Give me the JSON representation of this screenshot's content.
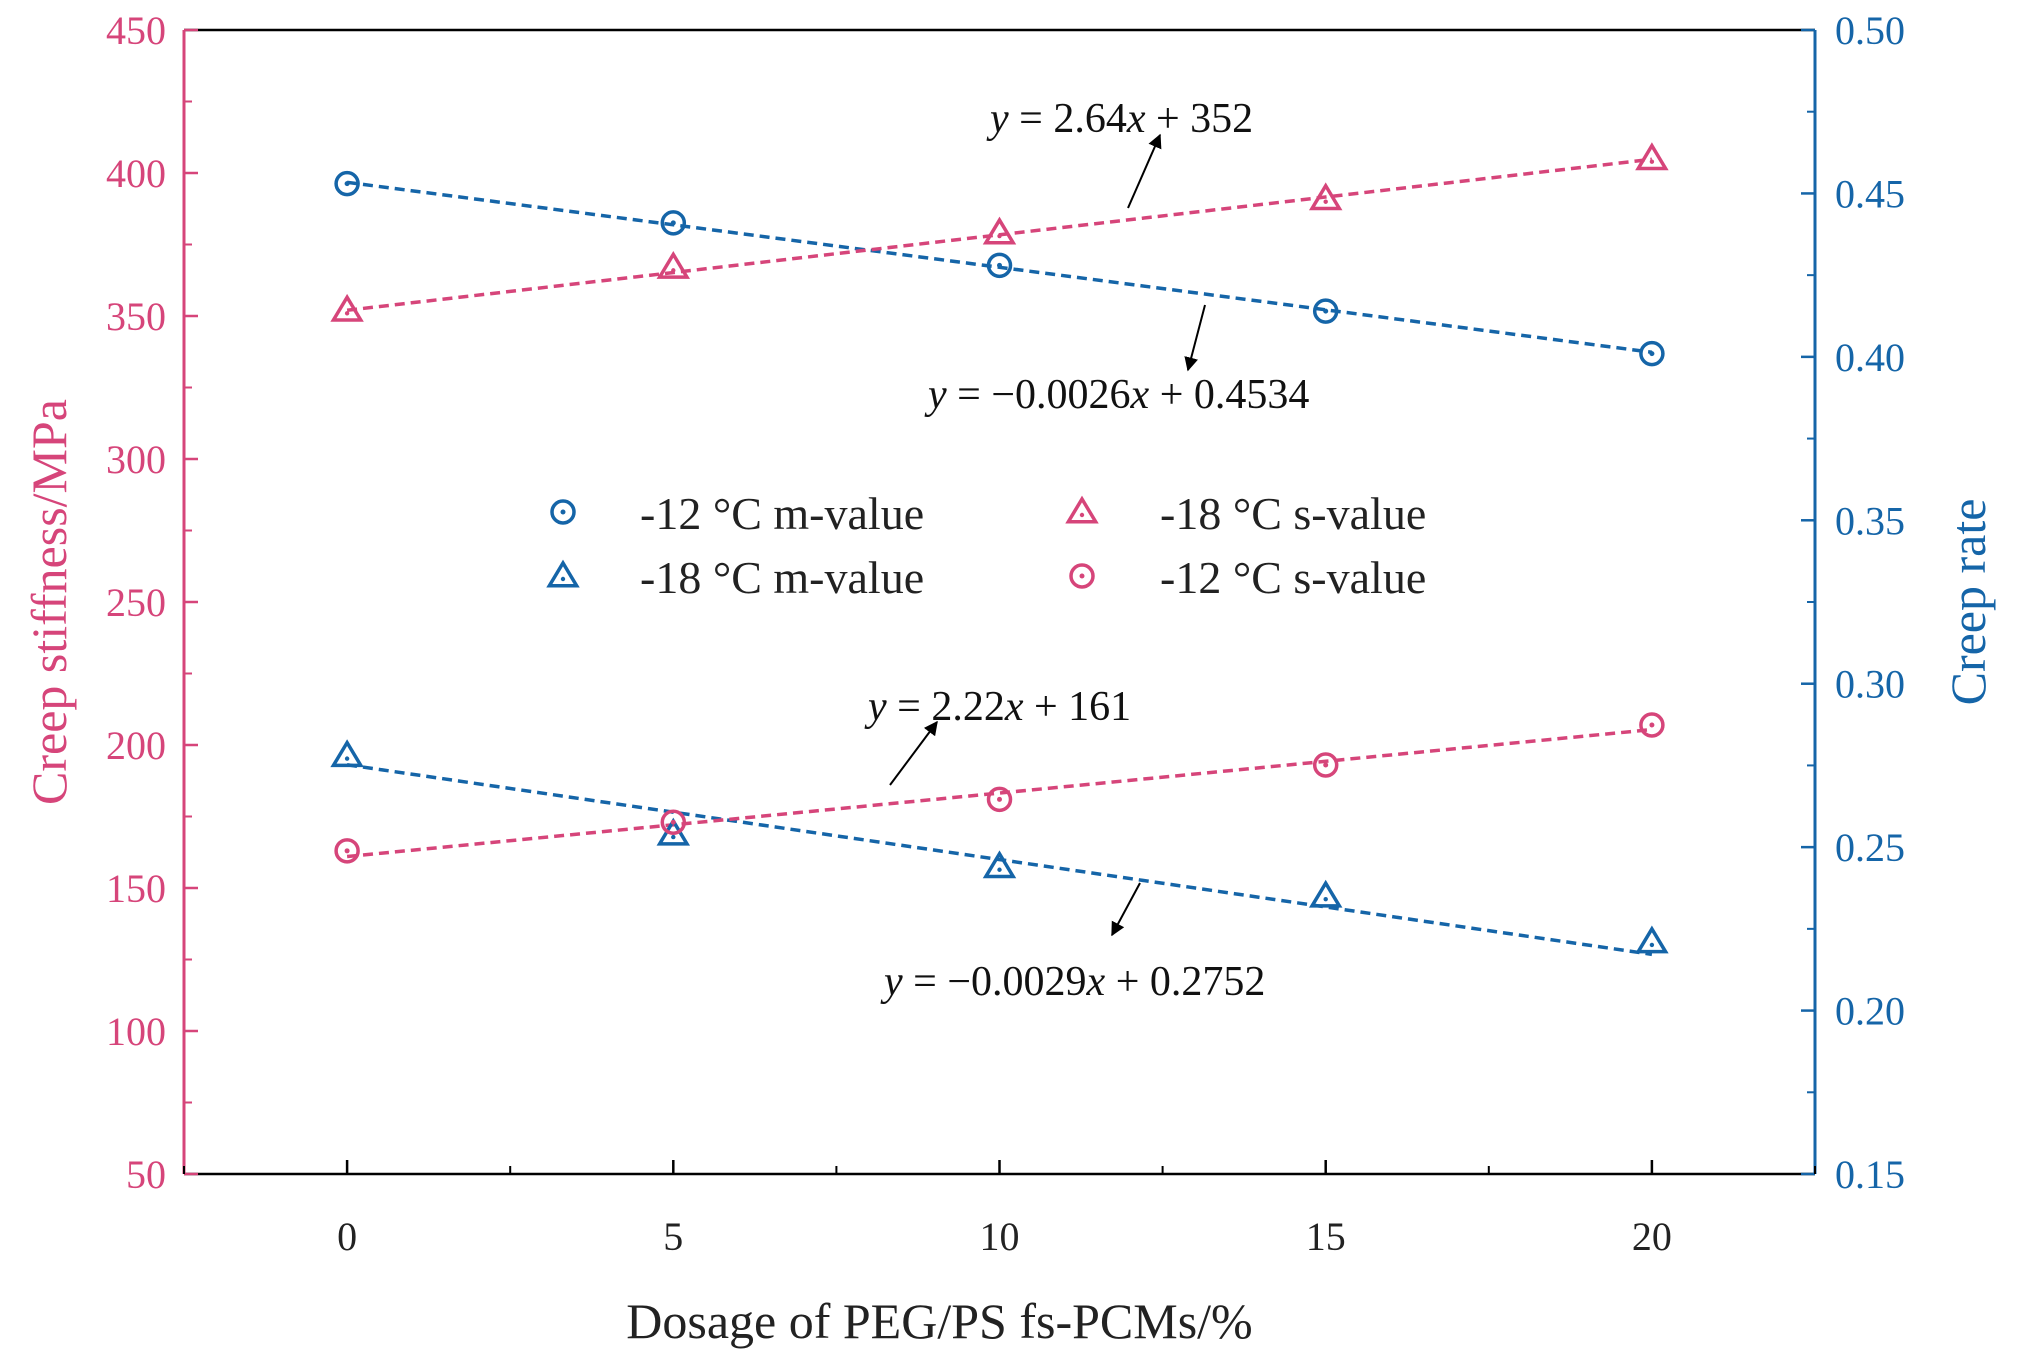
{
  "chart_data": {
    "type": "scatter",
    "x_label": "Dosage of PEG/PS fs-PCMs/%",
    "x_ticks": [
      0,
      5,
      10,
      15,
      20
    ],
    "x_range": [
      -2.5,
      22.5
    ],
    "y_left": {
      "label": "Creep stiffness/MPa",
      "range": [
        50,
        450
      ],
      "ticks": [
        50,
        100,
        150,
        200,
        250,
        300,
        350,
        400,
        450
      ]
    },
    "y_right": {
      "label": "Creep rate",
      "range": [
        0.15,
        0.5
      ],
      "ticks": [
        "0.15",
        "0.20",
        "0.25",
        "0.30",
        "0.35",
        "0.40",
        "0.45",
        "0.50"
      ]
    },
    "colors": {
      "pink": "#d6457a",
      "blue": "#1565a8"
    },
    "series": [
      {
        "key": "m12",
        "name": "-12 °C m-value",
        "axis": "right",
        "marker": "circle",
        "color": "blue",
        "x": [
          0,
          5,
          10,
          15,
          20
        ],
        "y": [
          0.453,
          0.441,
          0.428,
          0.414,
          0.401
        ],
        "fit": {
          "slope": -0.0026,
          "intercept": 0.4534
        }
      },
      {
        "key": "m18",
        "name": "-18 °C m-value",
        "axis": "right",
        "marker": "triangle",
        "color": "blue",
        "x": [
          0,
          5,
          10,
          15,
          20
        ],
        "y": [
          0.278,
          0.254,
          0.244,
          0.235,
          0.221
        ],
        "fit": {
          "slope": -0.0029,
          "intercept": 0.2752
        }
      },
      {
        "key": "s18",
        "name": "-18 °C s-value",
        "axis": "left",
        "marker": "triangle",
        "color": "pink",
        "x": [
          0,
          5,
          10,
          15,
          20
        ],
        "y": [
          352,
          367,
          379,
          391,
          405
        ],
        "fit": {
          "slope": 2.64,
          "intercept": 352
        }
      },
      {
        "key": "s12",
        "name": "-12 °C s-value",
        "axis": "left",
        "marker": "circle",
        "color": "pink",
        "x": [
          0,
          5,
          10,
          15,
          20
        ],
        "y": [
          163,
          173,
          181,
          193,
          207
        ],
        "fit": {
          "slope": 2.22,
          "intercept": 161
        }
      }
    ],
    "legend": {
      "position": "center",
      "entries": [
        "-12 °C m-value",
        "-18 °C s-value",
        "-18 °C m-value",
        "-12 °C s-value"
      ]
    },
    "annotations": [
      {
        "key": "s18",
        "italic": "y",
        "rest": " = 2.64",
        "italic2": "x",
        "rest2": " + 352"
      },
      {
        "key": "m12",
        "italic": "y",
        "rest": " = −0.0026",
        "italic2": "x",
        "rest2": " + 0.4534"
      },
      {
        "key": "s12",
        "italic": "y",
        "rest": " = 2.22",
        "italic2": "x",
        "rest2": " + 161"
      },
      {
        "key": "m18",
        "italic": "y",
        "rest": " = −0.0029",
        "italic2": "x",
        "rest2": " + 0.2752"
      }
    ]
  }
}
